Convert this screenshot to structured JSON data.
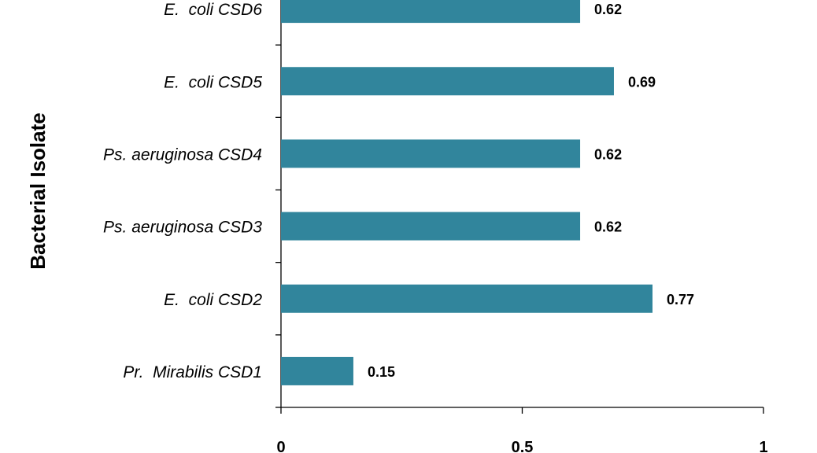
{
  "chart_data": {
    "type": "bar",
    "orientation": "horizontal",
    "categories": [
      "E.  coli CSD6",
      "E.  coli CSD5",
      "Ps. aeruginosa CSD4",
      "Ps. aeruginosa CSD3",
      "E.  coli CSD2",
      "Pr.  Mirabilis CSD1"
    ],
    "values": [
      0.62,
      0.69,
      0.62,
      0.62,
      0.77,
      0.15
    ],
    "value_labels": [
      "0.62",
      "0.69",
      "0.62",
      "0.62",
      "0.77",
      "0.15"
    ],
    "xlabel": "",
    "ylabel": "Bacterial Isolate",
    "xlim": [
      0,
      1
    ],
    "xticks": [
      0,
      0.5,
      1
    ],
    "xtick_labels": [
      "0",
      "0.5",
      "1"
    ],
    "bar_color": "#31859C",
    "grid": false,
    "legend": "none"
  }
}
